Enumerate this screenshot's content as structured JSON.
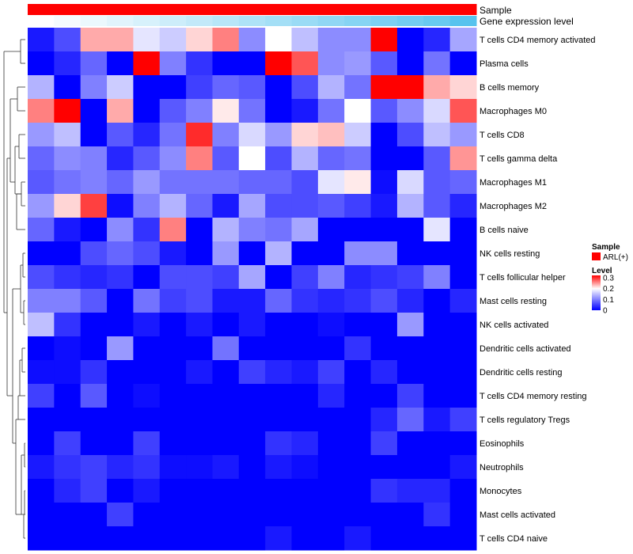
{
  "chart_data": {
    "type": "heatmap",
    "title": "",
    "columns": 17,
    "rows": [
      "T cells CD4 memory activated",
      "Plasma cells",
      "B cells memory",
      "Macrophages M0",
      "T cells CD8",
      "T cells gamma delta",
      "Macrophages M1",
      "Macrophages M2",
      "B cells naive",
      "NK cells resting",
      "T cells follicular helper",
      "Mast cells resting",
      "NK cells activated",
      "Dendritic cells activated",
      "Dendritic cells resting",
      "T cells CD4 memory resting",
      "T cells regulatory  Tregs",
      "Eosinophils",
      "Neutrophils",
      "Monocytes",
      "Mast cells activated",
      "T cells CD4 naive"
    ],
    "values": [
      [
        0.02,
        0.06,
        0.24,
        0.24,
        0.18,
        0.16,
        0.22,
        0.26,
        0.11,
        0.2,
        0.15,
        0.11,
        0.11,
        0.32,
        0.0,
        0.03,
        0.13
      ],
      [
        0.0,
        0.03,
        0.08,
        0.0,
        0.32,
        0.1,
        0.04,
        0.0,
        0.0,
        0.32,
        0.28,
        0.11,
        0.12,
        0.07,
        0.0,
        0.09,
        0.0
      ],
      [
        0.14,
        0.0,
        0.1,
        0.16,
        0.0,
        0.0,
        0.05,
        0.08,
        0.07,
        0.0,
        0.06,
        0.14,
        0.09,
        0.32,
        0.32,
        0.24,
        0.22
      ],
      [
        0.26,
        0.32,
        0.0,
        0.24,
        0.0,
        0.07,
        0.1,
        0.21,
        0.09,
        0.0,
        0.02,
        0.09,
        0.2,
        0.07,
        0.11,
        0.17,
        0.28
      ],
      [
        0.12,
        0.15,
        0.0,
        0.07,
        0.03,
        0.09,
        0.3,
        0.1,
        0.17,
        0.12,
        0.22,
        0.23,
        0.16,
        0.0,
        0.06,
        0.15,
        0.12
      ],
      [
        0.08,
        0.11,
        0.1,
        0.03,
        0.07,
        0.11,
        0.26,
        0.07,
        0.2,
        0.06,
        0.14,
        0.08,
        0.09,
        0.0,
        0.0,
        0.07,
        0.25
      ],
      [
        0.07,
        0.09,
        0.1,
        0.08,
        0.12,
        0.09,
        0.09,
        0.09,
        0.08,
        0.08,
        0.06,
        0.18,
        0.21,
        0.01,
        0.17,
        0.07,
        0.08
      ],
      [
        0.12,
        0.22,
        0.29,
        0.01,
        0.1,
        0.14,
        0.08,
        0.02,
        0.13,
        0.06,
        0.06,
        0.07,
        0.05,
        0.02,
        0.14,
        0.07,
        0.03
      ],
      [
        0.08,
        0.02,
        0.0,
        0.11,
        0.04,
        0.26,
        0.0,
        0.14,
        0.1,
        0.09,
        0.13,
        0.0,
        0.0,
        0.0,
        0.0,
        0.18,
        0.0
      ],
      [
        0.0,
        0.0,
        0.06,
        0.08,
        0.06,
        0.02,
        0.0,
        0.12,
        0.0,
        0.14,
        0.0,
        0.0,
        0.11,
        0.11,
        0.0,
        0.0,
        0.0
      ],
      [
        0.06,
        0.04,
        0.03,
        0.04,
        0.0,
        0.06,
        0.06,
        0.05,
        0.13,
        0.0,
        0.05,
        0.1,
        0.03,
        0.04,
        0.05,
        0.1,
        0.0
      ],
      [
        0.1,
        0.1,
        0.07,
        0.0,
        0.09,
        0.05,
        0.06,
        0.02,
        0.02,
        0.08,
        0.04,
        0.03,
        0.04,
        0.06,
        0.03,
        0.0,
        0.03
      ],
      [
        0.15,
        0.04,
        0.0,
        0.0,
        0.02,
        0.0,
        0.02,
        0.0,
        0.02,
        0.0,
        0.0,
        0.01,
        0.0,
        0.0,
        0.12,
        0.0,
        0.0
      ],
      [
        0.0,
        0.01,
        0.0,
        0.12,
        0.0,
        0.0,
        0.0,
        0.09,
        0.0,
        0.0,
        0.0,
        0.0,
        0.04,
        0.0,
        0.0,
        0.0,
        0.0
      ],
      [
        0.01,
        0.01,
        0.04,
        0.0,
        0.0,
        0.0,
        0.02,
        0.0,
        0.05,
        0.03,
        0.02,
        0.05,
        0.0,
        0.03,
        0.0,
        0.0,
        0.0
      ],
      [
        0.05,
        0.0,
        0.07,
        0.0,
        0.01,
        0.0,
        0.0,
        0.0,
        0.0,
        0.0,
        0.0,
        0.03,
        0.0,
        0.0,
        0.05,
        0.0,
        0.0
      ],
      [
        0.0,
        0.0,
        0.0,
        0.0,
        0.0,
        0.0,
        0.0,
        0.0,
        0.0,
        0.0,
        0.0,
        0.0,
        0.0,
        0.03,
        0.08,
        0.02,
        0.05
      ],
      [
        0.0,
        0.05,
        0.0,
        0.0,
        0.05,
        0.0,
        0.0,
        0.0,
        0.0,
        0.04,
        0.03,
        0.0,
        0.0,
        0.05,
        0.0,
        0.0,
        0.0
      ],
      [
        0.02,
        0.04,
        0.05,
        0.03,
        0.04,
        0.01,
        0.01,
        0.02,
        0.0,
        0.02,
        0.01,
        0.0,
        0.0,
        0.0,
        0.0,
        0.0,
        0.02
      ],
      [
        0.0,
        0.03,
        0.05,
        0.0,
        0.02,
        0.0,
        0.0,
        0.0,
        0.0,
        0.0,
        0.0,
        0.0,
        0.0,
        0.04,
        0.03,
        0.03,
        0.0
      ],
      [
        0.0,
        0.0,
        0.0,
        0.05,
        0.0,
        0.0,
        0.0,
        0.0,
        0.0,
        0.0,
        0.0,
        0.0,
        0.0,
        0.0,
        0.0,
        0.04,
        0.0
      ],
      [
        0.0,
        0.0,
        0.0,
        0.0,
        0.0,
        0.0,
        0.0,
        0.0,
        0.0,
        0.02,
        0.0,
        0.0,
        0.02,
        0.0,
        0.0,
        0.0,
        0.0
      ]
    ],
    "row_order_note": "rows listed top to bottom as displayed",
    "color_scale": {
      "min": 0,
      "mid": 0.2,
      "max": 0.32,
      "low_color": "#0000ff",
      "mid_color": "#ffffff",
      "high_color": "#ff0000"
    },
    "annotations": [
      {
        "name": "Sample",
        "colors": [
          "#ff0000",
          "#ff0000",
          "#ff0000",
          "#ff0000",
          "#ff0000",
          "#ff0000",
          "#ff0000",
          "#ff0000",
          "#ff0000",
          "#ff0000",
          "#ff0000",
          "#ff0000",
          "#ff0000",
          "#ff0000",
          "#ff0000",
          "#ff0000",
          "#ff0000"
        ]
      },
      {
        "name": "Gene expression level",
        "values": [
          0.0,
          0.06,
          0.12,
          0.18,
          0.24,
          0.3,
          0.36,
          0.42,
          0.48,
          0.54,
          0.6,
          0.66,
          0.72,
          0.78,
          0.84,
          0.9,
          1.0
        ],
        "low_color": "#ffffff",
        "high_color": "#57c3ee"
      }
    ],
    "legend": {
      "sample_title": "Sample",
      "sample_item": "ARL(+)",
      "sample_color": "#ff0000",
      "level_title": "Level",
      "level_ticks": [
        "0.3",
        "0.2",
        "0.1",
        "0"
      ],
      "level_tick_values": [
        0.3,
        0.2,
        0.1,
        0
      ]
    }
  }
}
